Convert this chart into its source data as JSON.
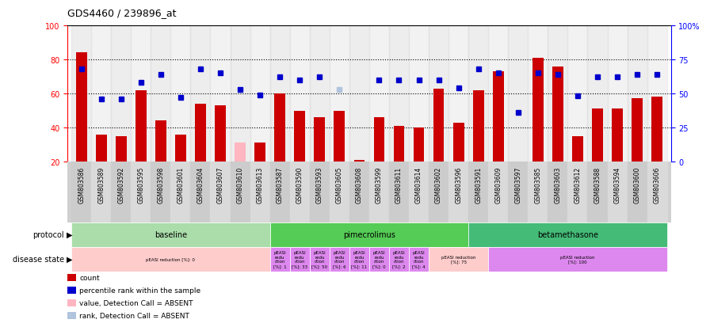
{
  "title": "GDS4460 / 239896_at",
  "samples": [
    "GSM803586",
    "GSM803589",
    "GSM803592",
    "GSM803595",
    "GSM803598",
    "GSM803601",
    "GSM803604",
    "GSM803607",
    "GSM803610",
    "GSM803613",
    "GSM803587",
    "GSM803590",
    "GSM803593",
    "GSM803605",
    "GSM803608",
    "GSM803599",
    "GSM803611",
    "GSM803614",
    "GSM803602",
    "GSM803596",
    "GSM803591",
    "GSM803609",
    "GSM803597",
    "GSM803585",
    "GSM803603",
    "GSM803612",
    "GSM803588",
    "GSM803594",
    "GSM803600",
    "GSM803606"
  ],
  "counts": [
    84,
    36,
    35,
    62,
    44,
    36,
    54,
    53,
    20,
    31,
    60,
    50,
    46,
    50,
    21,
    46,
    41,
    40,
    63,
    43,
    62,
    73,
    20,
    81,
    76,
    35,
    51,
    51,
    57,
    58
  ],
  "ranks": [
    68,
    46,
    46,
    58,
    64,
    47,
    68,
    65,
    53,
    49,
    62,
    60,
    62,
    62,
    null,
    60,
    60,
    60,
    60,
    54,
    68,
    65,
    36,
    65,
    64,
    48,
    62,
    62,
    64,
    64
  ],
  "absent_counts": [
    null,
    null,
    null,
    null,
    null,
    null,
    null,
    null,
    31,
    null,
    null,
    null,
    null,
    null,
    null,
    null,
    null,
    null,
    null,
    null,
    null,
    null,
    null,
    null,
    null,
    null,
    null,
    null,
    null,
    null
  ],
  "absent_ranks": [
    null,
    null,
    null,
    null,
    null,
    null,
    null,
    null,
    null,
    null,
    null,
    null,
    null,
    53,
    null,
    null,
    null,
    null,
    null,
    null,
    null,
    null,
    null,
    null,
    null,
    null,
    null,
    null,
    null,
    null
  ],
  "bar_color": "#cc0000",
  "rank_color": "#0000cc",
  "absent_bar_color": "#ffb6c1",
  "absent_rank_color": "#b0c4de",
  "ylim_left": [
    20,
    100
  ],
  "ylim_right": [
    0,
    100
  ],
  "grid_lines": [
    40,
    60,
    80
  ],
  "protocol_groups": [
    {
      "label": "baseline",
      "start": 0,
      "end": 9,
      "color": "#aaddaa"
    },
    {
      "label": "pimecrolimus",
      "start": 10,
      "end": 19,
      "color": "#55cc55"
    },
    {
      "label": "betamethasone",
      "start": 20,
      "end": 29,
      "color": "#44bb77"
    }
  ],
  "disease_groups": [
    {
      "label": "pEASI reduction [%]: 0",
      "start": 0,
      "end": 9,
      "color": "#ffcccc"
    },
    {
      "label": "pEASI\nredu\nction\n[%]: 1",
      "start": 10,
      "end": 10,
      "color": "#dd88ee"
    },
    {
      "label": "pEASI\nredu\nction\n[%]: 33",
      "start": 11,
      "end": 11,
      "color": "#dd88ee"
    },
    {
      "label": "pEASI\nredu\nction\n[%]: 50",
      "start": 12,
      "end": 12,
      "color": "#dd88ee"
    },
    {
      "label": "pEASI\nredu\nction\n[%]: 6",
      "start": 13,
      "end": 13,
      "color": "#dd88ee"
    },
    {
      "label": "pEASI\nredu\nction\n[%]: 11",
      "start": 14,
      "end": 14,
      "color": "#dd88ee"
    },
    {
      "label": "pEASI\nredu\nction\n[%]: 0",
      "start": 15,
      "end": 15,
      "color": "#dd88ee"
    },
    {
      "label": "pEASI\nredu\nction\n[%]: 2",
      "start": 16,
      "end": 16,
      "color": "#dd88ee"
    },
    {
      "label": "pEASI\nredu\nction\n[%]: 4",
      "start": 17,
      "end": 17,
      "color": "#dd88ee"
    },
    {
      "label": "pEASI reduction\n[%]: 75",
      "start": 18,
      "end": 20,
      "color": "#ffcccc"
    },
    {
      "label": "pEASI reduction\n[%]: 100",
      "start": 21,
      "end": 29,
      "color": "#dd88ee"
    }
  ],
  "legend_items": [
    {
      "color": "#cc0000",
      "label": "count"
    },
    {
      "color": "#0000cc",
      "label": "percentile rank within the sample"
    },
    {
      "color": "#ffb6c1",
      "label": "value, Detection Call = ABSENT"
    },
    {
      "color": "#b0c4de",
      "label": "rank, Detection Call = ABSENT"
    }
  ]
}
